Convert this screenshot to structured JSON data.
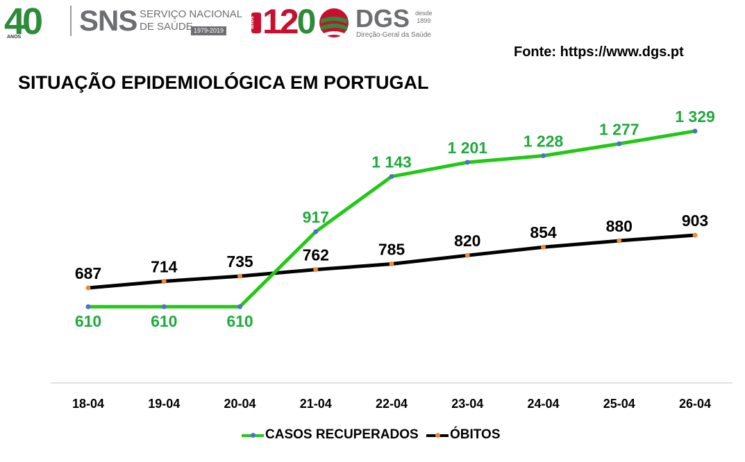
{
  "header": {
    "logo_40": "40",
    "logo_40_caption": "ANOS",
    "sns_mark": "SNS",
    "sns_name_line1": "SERVIÇO NACIONAL",
    "sns_name_line2": "DE SAÚDE",
    "sns_years": "1979-2019",
    "logo_120_tag": "anos",
    "logo_120_digits_a": "12",
    "logo_120_digits_b": "0",
    "dgs_mark": "DGS",
    "dgs_since_line1": "desde",
    "dgs_since_line2": "1899",
    "dgs_full": "Direção-Geral da Saúde"
  },
  "source": "Fonte: https://www.dgs.pt",
  "colors": {
    "recovered": "#22c814",
    "recovered_label": "#1faa3c",
    "deaths": "#000000",
    "recovered_marker": "#4f6fd0",
    "deaths_marker": "#ee8a3a",
    "axis": "#d9d9d9"
  },
  "chart_data": {
    "type": "line",
    "title": "SITUAÇÃO EPIDEMIOLÓGICA EM PORTUGAL",
    "xlabel": "",
    "ylabel": "",
    "grid": false,
    "legend": "bottom",
    "ylim": [
      0,
      1400
    ],
    "categories": [
      "18-04",
      "19-04",
      "20-04",
      "21-04",
      "22-04",
      "23-04",
      "24-04",
      "25-04",
      "26-04"
    ],
    "series": [
      {
        "name": "CASOS RECUPERADOS",
        "color": "#22c814",
        "marker_color": "#4f6fd0",
        "values": [
          610,
          610,
          610,
          917,
          1143,
          1201,
          1228,
          1277,
          1329
        ],
        "labels": [
          "610",
          "610",
          "610",
          "917",
          "1 143",
          "1 201",
          "1 228",
          "1 277",
          "1 329"
        ]
      },
      {
        "name": "ÓBITOS",
        "color": "#000000",
        "marker_color": "#ee8a3a",
        "values": [
          687,
          714,
          735,
          762,
          785,
          820,
          854,
          880,
          903
        ],
        "labels": [
          "687",
          "714",
          "735",
          "762",
          "785",
          "820",
          "854",
          "880",
          "903"
        ]
      }
    ]
  }
}
